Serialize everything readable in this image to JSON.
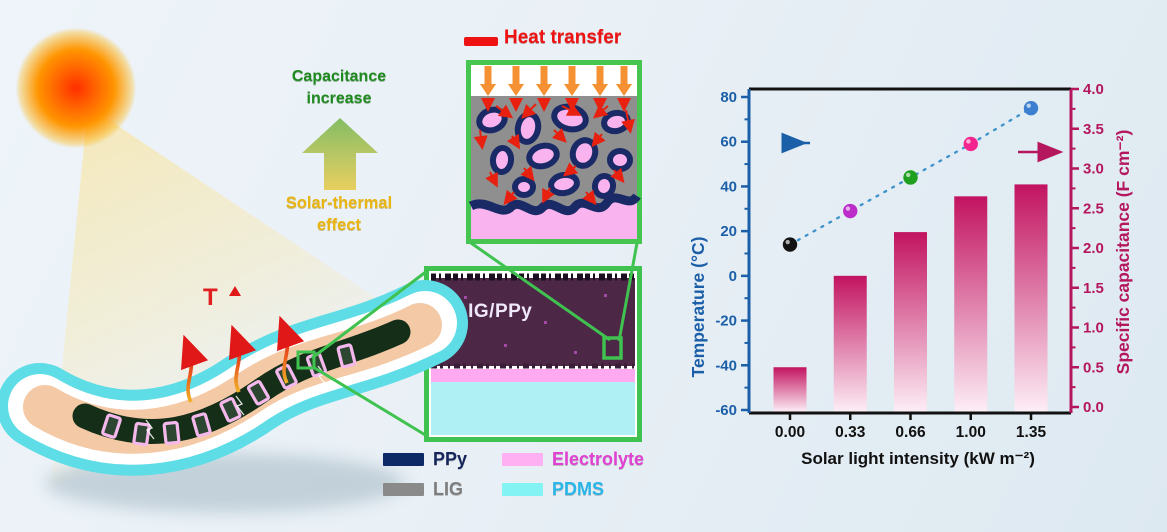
{
  "scene": {
    "sun": {
      "name": "sun"
    },
    "labels": {
      "capacitance_increase_line1": "Capacitance",
      "capacitance_increase_line2": "increase",
      "solar_thermal_line1": "Solar-thermal",
      "solar_thermal_line2": "effect",
      "temperature_rise": "T",
      "heat_transfer": "Heat transfer"
    },
    "cross_section": {
      "label": "LIG/PPy"
    },
    "legend": [
      {
        "label": "PPy",
        "swatch": "#0e2a66",
        "text_color": "#16265c"
      },
      {
        "label": "LIG",
        "swatch": "#8a8a8a",
        "text_color": "#7e7e7e"
      },
      {
        "label": "Electrolyte",
        "swatch": "#ffb0f2",
        "text_color": "#e23fd3"
      },
      {
        "label": "PDMS",
        "swatch": "#84f3f3",
        "text_color": "#29b6e8"
      }
    ],
    "colors": {
      "callout_green": "#3fc24f",
      "inset_border_green": "#46c551",
      "heat_arrow_red": "#e82010",
      "solar_arrow_orange": "#f59033"
    }
  },
  "chart_data": {
    "type": "bar",
    "title": "",
    "categories": [
      "0.00",
      "0.33",
      "0.66",
      "1.00",
      "1.35"
    ],
    "xlabel": "Solar light intensity (kW m⁻²)",
    "series": [
      {
        "name": "Temperature",
        "type": "scatter",
        "axis": "left",
        "values": [
          14,
          29,
          44,
          59,
          75
        ],
        "point_colors": [
          "#131313",
          "#bb2cc9",
          "#1fa11f",
          "#f5258f",
          "#3c7fd0"
        ],
        "line_style": "dotted",
        "line_color": "#3f93cc"
      },
      {
        "name": "Specific capacitance",
        "type": "bar",
        "axis": "right",
        "values": [
          0.5,
          1.65,
          2.2,
          2.65,
          2.8
        ],
        "bar_gradient_top": "#c21360",
        "bar_gradient_bottom": "#fdeef6"
      }
    ],
    "left_axis": {
      "label": "Temperature (°C)",
      "min": -60,
      "max": 80,
      "tick_step": 20,
      "decimals": 0,
      "color": "#1b5fa8"
    },
    "right_axis": {
      "label": "Specific capacitance (F cm⁻²)",
      "min": 0,
      "max": 4,
      "tick_step": 0.5,
      "decimals": 1,
      "color": "#b5175f"
    },
    "bottom_axis": {
      "color": "#111111"
    },
    "grid": false,
    "legend_position": "none",
    "annotations": {
      "left_arrow_color": "#1b5fa8",
      "right_arrow_color": "#b5175f"
    }
  }
}
